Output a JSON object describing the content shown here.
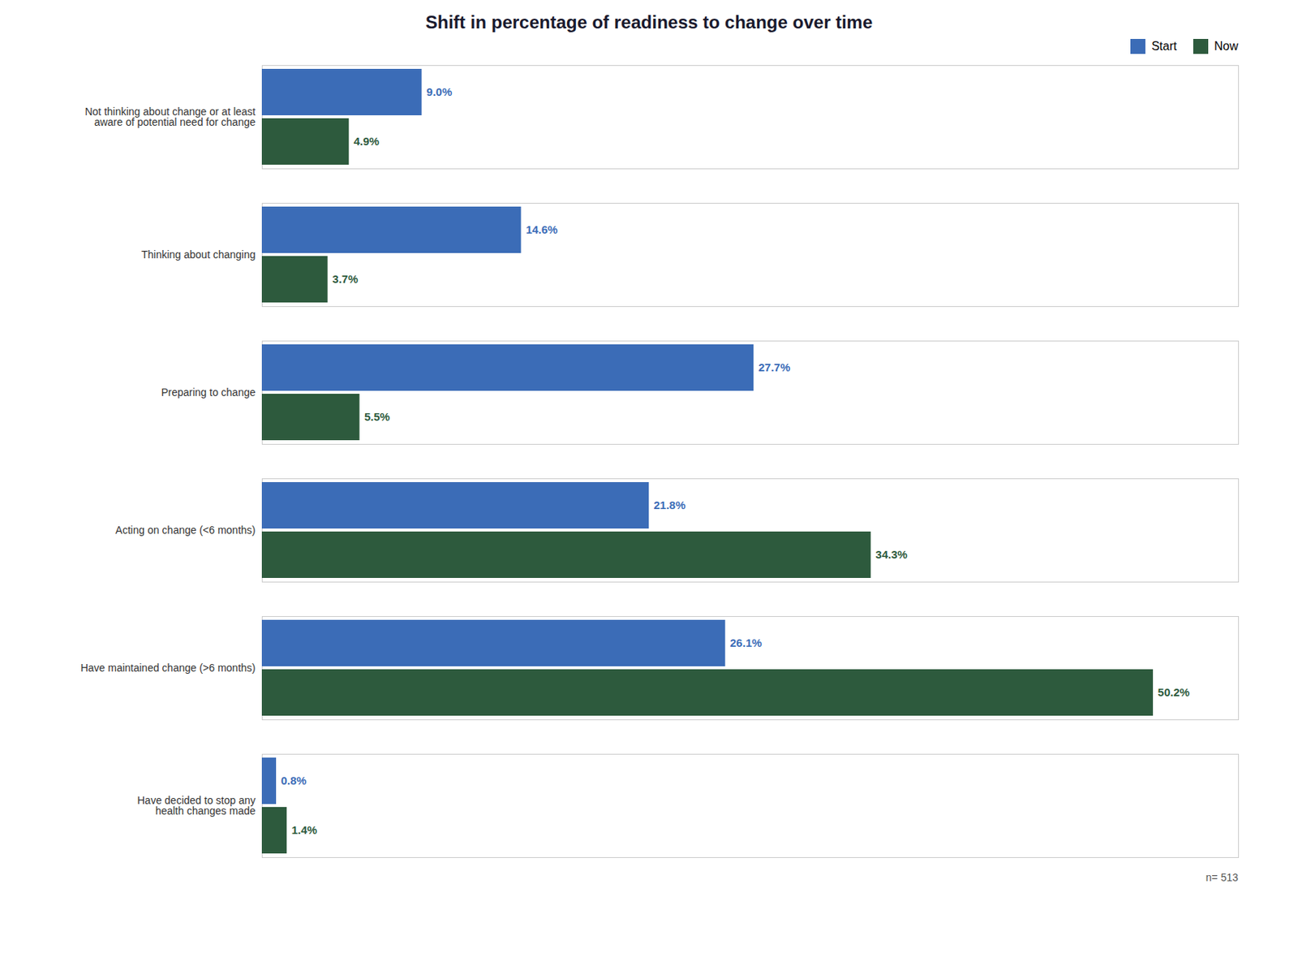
{
  "chart_data": {
    "type": "bar",
    "orientation": "horizontal",
    "title": "Shift in percentage of readiness to change over time",
    "categories": [
      "Not thinking about change or at least\naware of potential need for change",
      "Thinking about changing",
      "Preparing to change",
      "Acting on change (<6 months)",
      "Have maintained change (>6 months)",
      "Have decided to stop any\nhealth changes made"
    ],
    "series": [
      {
        "name": "Start",
        "color": "#3b6cb7",
        "values": [
          9.0,
          14.6,
          27.7,
          21.8,
          26.1,
          0.8
        ],
        "value_labels": [
          "9.0%",
          "14.6%",
          "27.7%",
          "21.8%",
          "26.1%",
          "0.8%"
        ]
      },
      {
        "name": "Now",
        "color": "#2d5a3d",
        "values": [
          4.9,
          3.7,
          5.5,
          34.3,
          50.2,
          1.4
        ],
        "value_labels": [
          "4.9%",
          "3.7%",
          "5.5%",
          "34.3%",
          "50.2%",
          "1.4%"
        ]
      }
    ],
    "xlim": [
      0,
      55
    ],
    "tick_labels": "y",
    "data_labels": true,
    "grid": false,
    "legend": "upper right",
    "annotations": [
      {
        "text": "n= 513"
      }
    ]
  }
}
